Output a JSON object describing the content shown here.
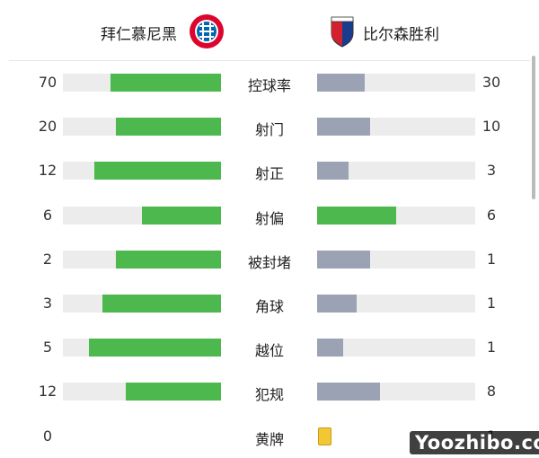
{
  "header": {
    "home_team": "拜仁慕尼黑",
    "away_team": "比尔森胜利"
  },
  "stats": [
    {
      "label": "控球率",
      "home": 70,
      "away": 30
    },
    {
      "label": "射门",
      "home": 20,
      "away": 10
    },
    {
      "label": "射正",
      "home": 12,
      "away": 3
    },
    {
      "label": "射偏",
      "home": 6,
      "away": 6
    },
    {
      "label": "被封堵",
      "home": 2,
      "away": 1
    },
    {
      "label": "角球",
      "home": 3,
      "away": 1
    },
    {
      "label": "越位",
      "home": 5,
      "away": 1
    },
    {
      "label": "犯规",
      "home": 12,
      "away": 8
    },
    {
      "label": "黄牌",
      "home": 0,
      "away": 1,
      "display": "cards"
    }
  ],
  "watermark": "Yoozhibo.com"
}
